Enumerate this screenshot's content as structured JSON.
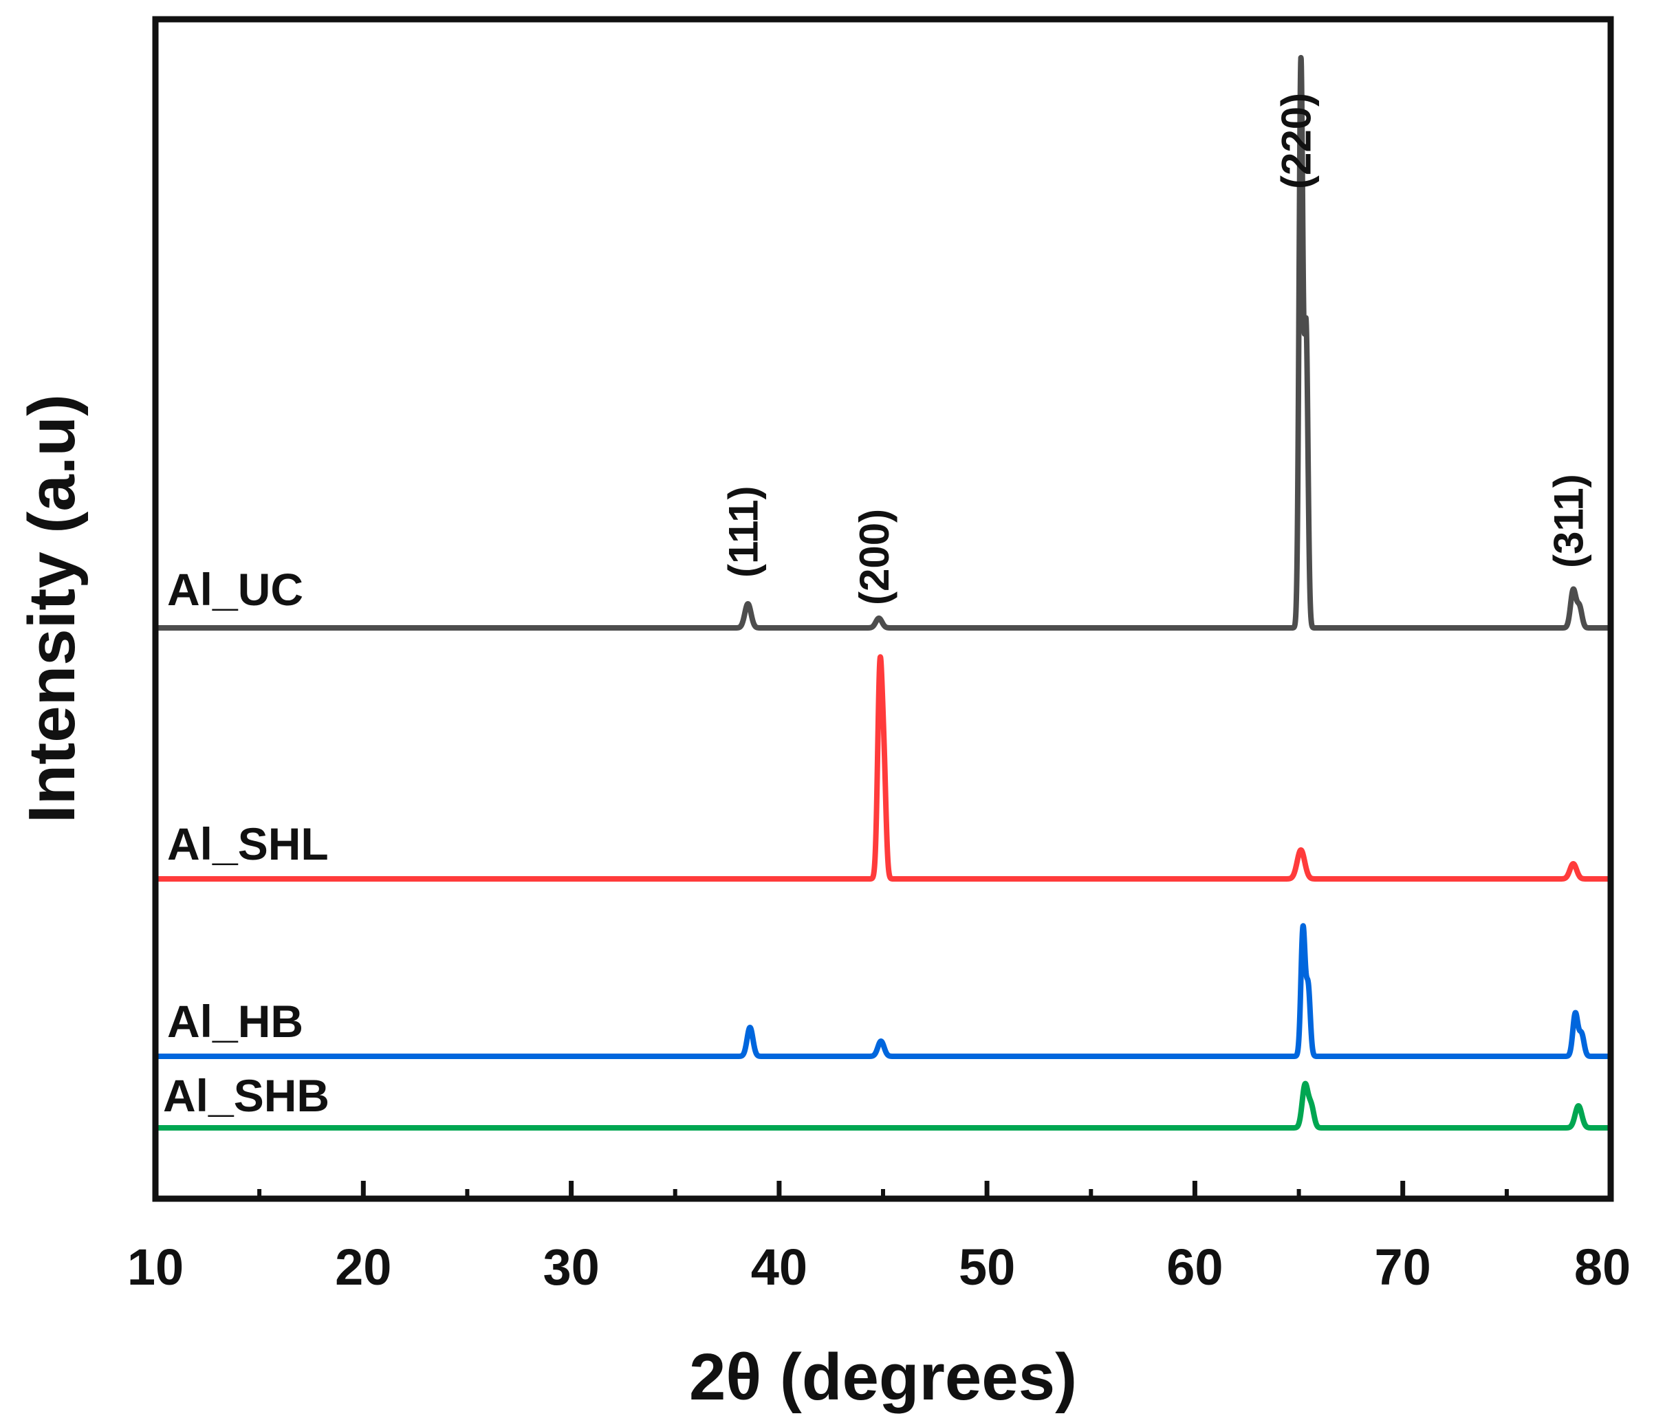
{
  "chart_data": {
    "type": "line",
    "xlabel": "2θ (degrees)",
    "ylabel": "Intensity (a.u)",
    "xlim": [
      10,
      80
    ],
    "y_ticks": "none",
    "grid": false,
    "legend": "inline labels at left of each trace",
    "x_ticks": [
      {
        "value": 10,
        "label": "10"
      },
      {
        "value": 20,
        "label": "20"
      },
      {
        "value": 30,
        "label": "30"
      },
      {
        "value": 40,
        "label": "40"
      },
      {
        "value": 50,
        "label": "50"
      },
      {
        "value": 60,
        "label": "60"
      },
      {
        "value": 70,
        "label": "70"
      },
      {
        "value": 80,
        "label": "80"
      }
    ],
    "series": [
      {
        "name": "Al_UC",
        "color": "#4d4d4d",
        "baseline_intensity": 0,
        "peaks": [
          {
            "two_theta": 38.5,
            "intensity": 35,
            "width": 0.15
          },
          {
            "two_theta": 44.8,
            "intensity": 14,
            "width": 0.15
          },
          {
            "two_theta": 65.1,
            "intensity": 820,
            "width": 0.09
          },
          {
            "two_theta": 65.35,
            "intensity": 430,
            "width": 0.09
          },
          {
            "two_theta": 78.2,
            "intensity": 55,
            "width": 0.13
          },
          {
            "two_theta": 78.5,
            "intensity": 30,
            "width": 0.12
          }
        ]
      },
      {
        "name": "Al_SHL",
        "color": "#ff3b3b",
        "baseline_intensity": 0,
        "peaks": [
          {
            "two_theta": 44.85,
            "intensity": 300,
            "width": 0.11
          },
          {
            "two_theta": 45.05,
            "intensity": 140,
            "width": 0.1
          },
          {
            "two_theta": 65.1,
            "intensity": 42,
            "width": 0.18
          },
          {
            "two_theta": 78.2,
            "intensity": 22,
            "width": 0.16
          }
        ]
      },
      {
        "name": "Al_HB",
        "color": "#0066dd",
        "baseline_intensity": 0,
        "peaks": [
          {
            "two_theta": 38.6,
            "intensity": 42,
            "width": 0.14
          },
          {
            "two_theta": 44.9,
            "intensity": 22,
            "width": 0.15
          },
          {
            "two_theta": 65.2,
            "intensity": 185,
            "width": 0.1
          },
          {
            "two_theta": 65.45,
            "intensity": 100,
            "width": 0.1
          },
          {
            "two_theta": 78.3,
            "intensity": 62,
            "width": 0.12
          },
          {
            "two_theta": 78.6,
            "intensity": 32,
            "width": 0.12
          }
        ]
      },
      {
        "name": "Al_SHB",
        "color": "#00a651",
        "baseline_intensity": 0,
        "peaks": [
          {
            "two_theta": 65.3,
            "intensity": 62,
            "width": 0.14
          },
          {
            "two_theta": 65.6,
            "intensity": 30,
            "width": 0.13
          },
          {
            "two_theta": 78.45,
            "intensity": 32,
            "width": 0.16
          }
        ]
      }
    ],
    "annotations": [
      {
        "text": "(111)",
        "two_theta": 38.5
      },
      {
        "text": "(200)",
        "two_theta": 44.8
      },
      {
        "text": "(220)",
        "two_theta": 65.1
      },
      {
        "text": "(311)",
        "two_theta": 78.2
      }
    ]
  }
}
